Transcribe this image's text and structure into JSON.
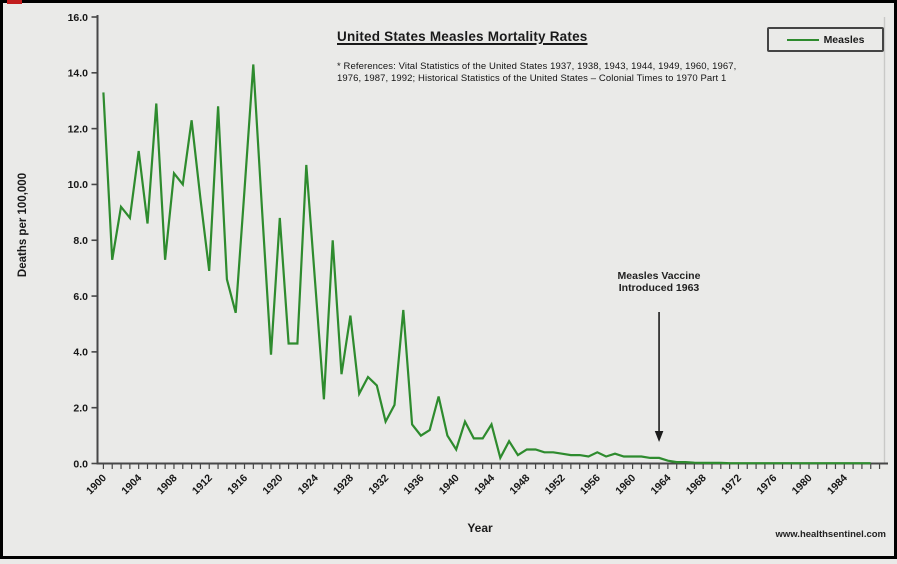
{
  "page": {
    "background_color": "#eaeae8",
    "frame_color": "#000000",
    "corner_mark_color": "#c21d1d"
  },
  "chart": {
    "title": "United States Measles Mortality Rates",
    "references_line1": "* References: Vital Statistics of the United States 1937, 1938, 1943, 1944, 1949, 1960, 1967,",
    "references_line2": "1976, 1987, 1992; Historical Statistics of the United States – Colonial Times to 1970 Part 1",
    "legend": {
      "label": "Measles",
      "line_color": "#2e8b2e"
    },
    "y_axis_title": "Deaths per 100,000",
    "x_axis_title": "Year",
    "annotation": {
      "line1": "Measles Vaccine",
      "line2": "Introduced 1963"
    },
    "watermark": "www.healthsentinel.com"
  },
  "chart_data": {
    "type": "line",
    "title": "United States Measles Mortality Rates",
    "xlabel": "Year",
    "ylabel": "Deaths per 100,000",
    "ylim": [
      0,
      16
    ],
    "y_tick_step": 2,
    "y_tick_labels": [
      "0.0",
      "2.0",
      "4.0",
      "6.0",
      "8.0",
      "10.0",
      "12.0",
      "14.0",
      "16.0"
    ],
    "x_range": [
      1900,
      1988
    ],
    "x_tick_every_years": 1,
    "x_label_every_years": 4,
    "x_tick_labels": [
      1900,
      1904,
      1908,
      1912,
      1916,
      1920,
      1924,
      1928,
      1932,
      1936,
      1940,
      1944,
      1948,
      1952,
      1956,
      1960,
      1964,
      1968,
      1972,
      1976,
      1980,
      1984
    ],
    "grid": false,
    "legend_position": "top-right",
    "annotations": [
      {
        "text": "Measles Vaccine Introduced 1963",
        "arrow_points_to_year": 1963
      }
    ],
    "series": [
      {
        "name": "Measles",
        "color": "#2e8b2e",
        "x": [
          1900,
          1901,
          1902,
          1903,
          1904,
          1905,
          1906,
          1907,
          1908,
          1909,
          1910,
          1911,
          1912,
          1913,
          1914,
          1915,
          1916,
          1917,
          1918,
          1919,
          1920,
          1921,
          1922,
          1923,
          1924,
          1925,
          1926,
          1927,
          1928,
          1929,
          1930,
          1931,
          1932,
          1933,
          1934,
          1935,
          1936,
          1937,
          1938,
          1939,
          1940,
          1941,
          1942,
          1943,
          1944,
          1945,
          1946,
          1947,
          1948,
          1949,
          1950,
          1951,
          1952,
          1953,
          1954,
          1955,
          1956,
          1957,
          1958,
          1959,
          1960,
          1961,
          1962,
          1963,
          1964,
          1965,
          1966,
          1967,
          1968,
          1969,
          1970,
          1971,
          1972,
          1973,
          1974,
          1975,
          1976,
          1977,
          1978,
          1979,
          1980,
          1981,
          1982,
          1983,
          1984,
          1985,
          1986,
          1987
        ],
        "values": [
          13.3,
          7.3,
          9.2,
          8.8,
          11.2,
          8.6,
          12.9,
          7.3,
          10.4,
          10.0,
          12.3,
          9.5,
          6.9,
          12.8,
          6.6,
          5.4,
          9.8,
          14.3,
          9.0,
          3.9,
          8.8,
          4.3,
          4.3,
          10.7,
          6.5,
          2.3,
          8.0,
          3.2,
          5.3,
          2.5,
          3.1,
          2.8,
          1.5,
          2.1,
          5.5,
          1.4,
          1.0,
          1.2,
          2.4,
          1.0,
          0.5,
          1.5,
          0.9,
          0.9,
          1.4,
          0.2,
          0.8,
          0.3,
          0.5,
          0.5,
          0.4,
          0.4,
          0.35,
          0.3,
          0.3,
          0.25,
          0.4,
          0.25,
          0.35,
          0.25,
          0.25,
          0.25,
          0.2,
          0.2,
          0.1,
          0.05,
          0.05,
          0.03,
          0.02,
          0.02,
          0.02,
          0.01,
          0.01,
          0.01,
          0.01,
          0.01,
          0.01,
          0.01,
          0.01,
          0.01,
          0.01,
          0.01,
          0.01,
          0.01,
          0.01,
          0.01,
          0.01,
          0.01
        ]
      }
    ]
  }
}
